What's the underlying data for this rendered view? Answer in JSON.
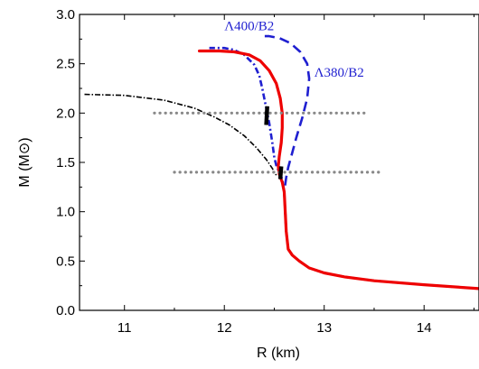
{
  "chart_data": {
    "type": "line",
    "xlabel": "R (km)",
    "ylabel": "M (M⊙)",
    "xlim": [
      10.55,
      14.55
    ],
    "ylim": [
      0.0,
      3.0
    ],
    "x_ticks": [
      "11",
      "12",
      "13",
      "14"
    ],
    "y_ticks": [
      "0.0",
      "0.5",
      "1.0",
      "1.5",
      "2.0",
      "2.5",
      "3.0"
    ],
    "annotations": [
      {
        "text": "Λ400/B2",
        "x": 12.0,
        "y": 2.84
      },
      {
        "text": "Λ380/B2",
        "x": 12.9,
        "y": 2.37
      }
    ],
    "series": [
      {
        "style": "blue-dash-dot",
        "color": "#1f1fd0",
        "x": [
          14.55,
          14.0,
          13.5,
          13.2,
          13.0,
          12.85,
          12.75,
          12.68,
          12.64,
          12.62,
          12.61,
          12.6,
          12.58,
          12.55,
          12.52,
          12.5,
          12.48,
          12.45,
          12.41,
          12.38,
          12.35,
          12.3,
          12.2,
          12.1,
          12.0,
          11.9,
          11.85
        ],
        "y": [
          0.22,
          0.26,
          0.3,
          0.34,
          0.38,
          0.43,
          0.5,
          0.56,
          0.62,
          0.8,
          1.0,
          1.2,
          1.33,
          1.4,
          1.47,
          1.55,
          1.7,
          1.9,
          2.1,
          2.25,
          2.38,
          2.49,
          2.59,
          2.64,
          2.66,
          2.66,
          2.66
        ]
      },
      {
        "style": "blue-dash",
        "color": "#1f1fd0",
        "x": [
          12.62,
          12.61,
          12.6,
          12.62,
          12.64,
          12.68,
          12.72,
          12.78,
          12.83,
          12.85,
          12.83,
          12.76,
          12.66,
          12.55,
          12.45,
          12.38
        ],
        "y": [
          0.8,
          1.0,
          1.2,
          1.35,
          1.45,
          1.6,
          1.75,
          1.95,
          2.15,
          2.35,
          2.5,
          2.62,
          2.71,
          2.76,
          2.78,
          2.78
        ]
      },
      {
        "style": "red-solid",
        "color": "#ee0000",
        "x": [
          14.55,
          14.0,
          13.5,
          13.2,
          13.0,
          12.85,
          12.75,
          12.68,
          12.64,
          12.62,
          12.61,
          12.6,
          12.58,
          12.55,
          12.54,
          12.55,
          12.57,
          12.58,
          12.58,
          12.56,
          12.52,
          12.45,
          12.36,
          12.25,
          12.1,
          11.95,
          11.75
        ],
        "y": [
          0.22,
          0.26,
          0.3,
          0.34,
          0.38,
          0.43,
          0.5,
          0.56,
          0.62,
          0.8,
          1.0,
          1.2,
          1.3,
          1.38,
          1.46,
          1.56,
          1.7,
          1.85,
          2.0,
          2.15,
          2.3,
          2.43,
          2.53,
          2.59,
          2.62,
          2.63,
          2.63
        ]
      },
      {
        "style": "black-dash-dot",
        "color": "#000000",
        "x": [
          10.6,
          11.0,
          11.4,
          11.7,
          11.9,
          12.05,
          12.2,
          12.32,
          12.42,
          12.48,
          12.52
        ],
        "y": [
          2.19,
          2.18,
          2.13,
          2.05,
          1.96,
          1.88,
          1.77,
          1.65,
          1.53,
          1.44,
          1.37
        ]
      },
      {
        "style": "gray-dotted",
        "color": "#888888",
        "x": [
          11.3,
          13.45
        ],
        "y": [
          2.0,
          2.0
        ]
      },
      {
        "style": "gray-dotted",
        "color": "#888888",
        "x": [
          11.5,
          13.55
        ],
        "y": [
          1.4,
          1.4
        ]
      },
      {
        "style": "black-thick",
        "color": "#000000",
        "x": [
          12.42,
          12.43
        ],
        "y": [
          1.88,
          2.07
        ]
      },
      {
        "style": "black-thick",
        "color": "#000000",
        "x": [
          12.56,
          12.57
        ],
        "y": [
          1.33,
          1.46
        ]
      }
    ]
  }
}
